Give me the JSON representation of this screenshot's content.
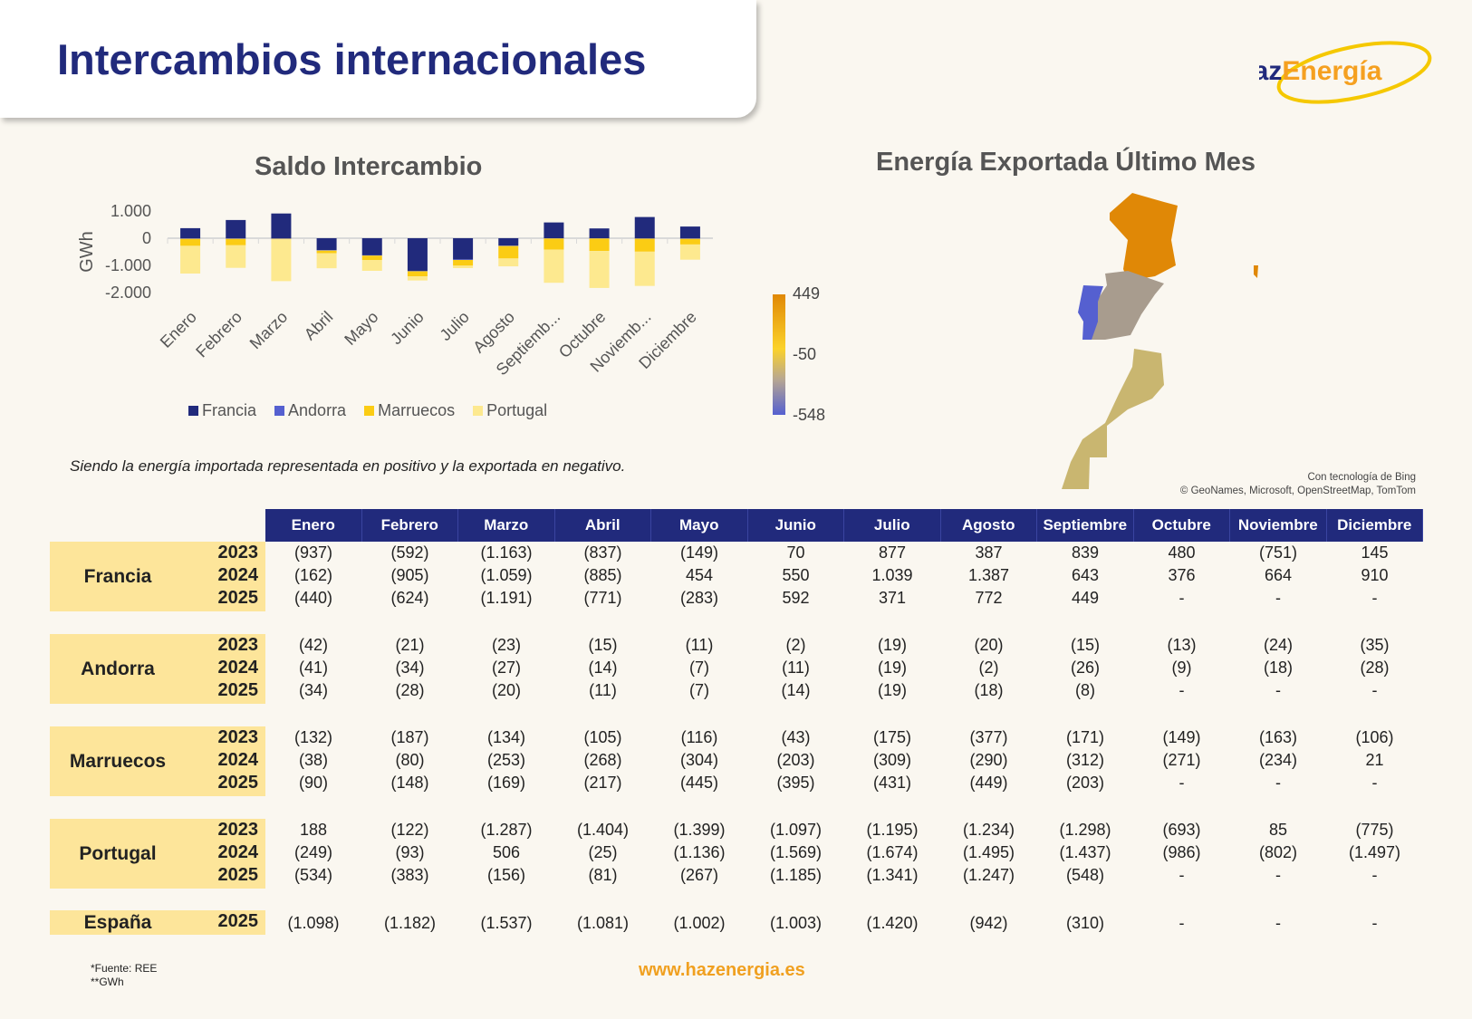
{
  "header": {
    "title": "Intercambios internacionales",
    "logo": "HazEnergía"
  },
  "chart_data": {
    "type": "bar",
    "stacked": true,
    "title": "Saldo Intercambio",
    "ylabel": "GWh",
    "xlabel": "",
    "ylim": [
      -2000,
      1000
    ],
    "yticks": [
      "1.000",
      "0",
      "-1.000",
      "-2.000"
    ],
    "ytick_values": [
      1000,
      0,
      -1000,
      -2000
    ],
    "categories": [
      "Enero",
      "Febrero",
      "Marzo",
      "Abril",
      "Mayo",
      "Junio",
      "Julio",
      "Agosto",
      "Septiemb...",
      "Octubre",
      "Noviemb...",
      "Diciembre"
    ],
    "series": [
      {
        "name": "Francia",
        "color": "#212a7c",
        "values": [
          370,
          670,
          910,
          -440,
          -630,
          -1200,
          -780,
          -270,
          580,
          360,
          780,
          430
        ]
      },
      {
        "name": "Andorra",
        "color": "#5560d0",
        "values": [
          -20,
          -20,
          -20,
          -15,
          -10,
          -15,
          -20,
          -15,
          -10,
          -10,
          -15,
          -20
        ]
      },
      {
        "name": "Marruecos",
        "color": "#fbcc14",
        "values": [
          -260,
          -240,
          -20,
          -100,
          -160,
          -190,
          -210,
          -460,
          -410,
          -460,
          -480,
          -210
        ]
      },
      {
        "name": "Portugal",
        "color": "#fde98f",
        "values": [
          -1020,
          -830,
          -1540,
          -550,
          -400,
          -150,
          -90,
          -290,
          -1220,
          -1360,
          -1260,
          -560
        ]
      }
    ],
    "legend_position": "bottom"
  },
  "note": "Siendo la energía importada representada en positivo y la exportada en negativo.",
  "map": {
    "title": "Energía Exportada Último Mes",
    "scale": [
      "449",
      "-50",
      "-548"
    ],
    "colors": {
      "francia": "#e08806",
      "espana": "#a89c8e",
      "portugal": "#5560d0",
      "marruecos": "#c9b670"
    },
    "attribution": [
      "Con tecnología de Bing",
      "© GeoNames, Microsoft, OpenStreetMap, TomTom"
    ]
  },
  "table": {
    "months": [
      "Enero",
      "Febrero",
      "Marzo",
      "Abril",
      "Mayo",
      "Junio",
      "Julio",
      "Agosto",
      "Septiembre",
      "Octubre",
      "Noviembre",
      "Diciembre"
    ],
    "groups": [
      {
        "name": "Francia",
        "rows": [
          {
            "year": "2023",
            "values": [
              "(937)",
              "(592)",
              "(1.163)",
              "(837)",
              "(149)",
              "70",
              "877",
              "387",
              "839",
              "480",
              "(751)",
              "145"
            ]
          },
          {
            "year": "2024",
            "values": [
              "(162)",
              "(905)",
              "(1.059)",
              "(885)",
              "454",
              "550",
              "1.039",
              "1.387",
              "643",
              "376",
              "664",
              "910"
            ]
          },
          {
            "year": "2025",
            "values": [
              "(440)",
              "(624)",
              "(1.191)",
              "(771)",
              "(283)",
              "592",
              "371",
              "772",
              "449",
              "-",
              "-",
              "-"
            ]
          }
        ]
      },
      {
        "name": "Andorra",
        "rows": [
          {
            "year": "2023",
            "values": [
              "(42)",
              "(21)",
              "(23)",
              "(15)",
              "(11)",
              "(2)",
              "(19)",
              "(20)",
              "(15)",
              "(13)",
              "(24)",
              "(35)"
            ]
          },
          {
            "year": "2024",
            "values": [
              "(41)",
              "(34)",
              "(27)",
              "(14)",
              "(7)",
              "(11)",
              "(19)",
              "(2)",
              "(26)",
              "(9)",
              "(18)",
              "(28)"
            ]
          },
          {
            "year": "2025",
            "values": [
              "(34)",
              "(28)",
              "(20)",
              "(11)",
              "(7)",
              "(14)",
              "(19)",
              "(18)",
              "(8)",
              "-",
              "-",
              "-"
            ]
          }
        ]
      },
      {
        "name": "Marruecos",
        "rows": [
          {
            "year": "2023",
            "values": [
              "(132)",
              "(187)",
              "(134)",
              "(105)",
              "(116)",
              "(43)",
              "(175)",
              "(377)",
              "(171)",
              "(149)",
              "(163)",
              "(106)"
            ]
          },
          {
            "year": "2024",
            "values": [
              "(38)",
              "(80)",
              "(253)",
              "(268)",
              "(304)",
              "(203)",
              "(309)",
              "(290)",
              "(312)",
              "(271)",
              "(234)",
              "21"
            ]
          },
          {
            "year": "2025",
            "values": [
              "(90)",
              "(148)",
              "(169)",
              "(217)",
              "(445)",
              "(395)",
              "(431)",
              "(449)",
              "(203)",
              "-",
              "-",
              "-"
            ]
          }
        ]
      },
      {
        "name": "Portugal",
        "rows": [
          {
            "year": "2023",
            "values": [
              "188",
              "(122)",
              "(1.287)",
              "(1.404)",
              "(1.399)",
              "(1.097)",
              "(1.195)",
              "(1.234)",
              "(1.298)",
              "(693)",
              "85",
              "(775)"
            ]
          },
          {
            "year": "2024",
            "values": [
              "(249)",
              "(93)",
              "506",
              "(25)",
              "(1.136)",
              "(1.569)",
              "(1.674)",
              "(1.495)",
              "(1.437)",
              "(986)",
              "(802)",
              "(1.497)"
            ]
          },
          {
            "year": "2025",
            "values": [
              "(534)",
              "(383)",
              "(156)",
              "(81)",
              "(267)",
              "(1.185)",
              "(1.341)",
              "(1.247)",
              "(548)",
              "-",
              "-",
              "-"
            ]
          }
        ]
      },
      {
        "name": "España",
        "rows": [
          {
            "year": "2025",
            "values": [
              "(1.098)",
              "(1.182)",
              "(1.537)",
              "(1.081)",
              "(1.002)",
              "(1.003)",
              "(1.420)",
              "(942)",
              "(310)",
              "-",
              "-",
              "-"
            ]
          }
        ]
      }
    ]
  },
  "footer": {
    "source": "*Fuente: REE",
    "unit": "**GWh",
    "website": "www.hazenergia.es"
  }
}
